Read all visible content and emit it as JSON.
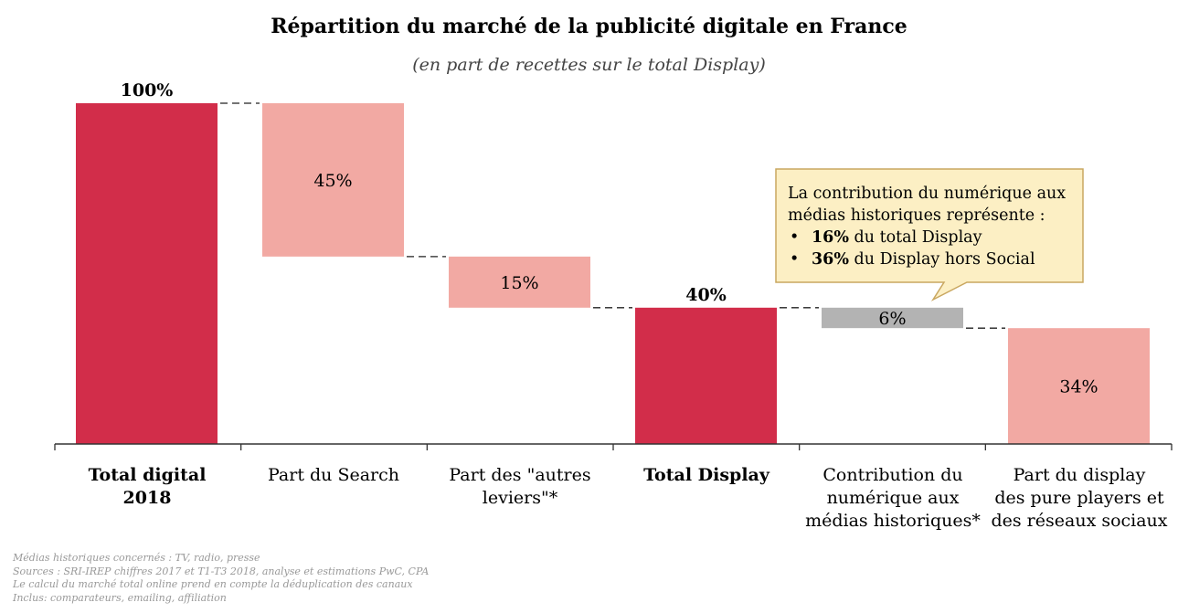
{
  "title": "Répartition du marché de la publicité digitale en France",
  "subtitle": "(en part de recettes sur le total Display)",
  "colors": {
    "total": "#d22d4a",
    "pink": "#f2a9a3",
    "gray": "#b3b3b3",
    "callout_bg": "#fcefc4",
    "callout_border": "#c9a760"
  },
  "chart_data": {
    "type": "bar",
    "subtype": "waterfall",
    "title": "Répartition du marché de la publicité digitale en France",
    "subtitle": "(en part de recettes sur le total Display)",
    "ylim": [
      0,
      100
    ],
    "categories": [
      "Total digital 2018",
      "Part du Search",
      "Part des \"autres leviers\"*",
      "Total Display",
      "Contribution du numérique aux médias historiques*",
      "Part du display des pure players et des réseaux sociaux"
    ],
    "bars": [
      {
        "label": "Total digital 2018",
        "base": 0,
        "value": 100,
        "data_label": "100%",
        "kind": "total"
      },
      {
        "label": "Part du Search",
        "base": 55,
        "value": 45,
        "data_label": "45%",
        "kind": "step"
      },
      {
        "label": "Part des \"autres leviers\"*",
        "base": 40,
        "value": 15,
        "data_label": "15%",
        "kind": "step"
      },
      {
        "label": "Total Display",
        "base": 0,
        "value": 40,
        "data_label": "40%",
        "kind": "total"
      },
      {
        "label": "Contribution du numérique aux médias historiques*",
        "base": 34,
        "value": 6,
        "data_label": "6%",
        "kind": "gray"
      },
      {
        "label": "Part du display des pure players et des réseaux sociaux",
        "base": 0,
        "value": 34,
        "data_label": "34%",
        "kind": "step"
      }
    ],
    "grid": false,
    "legend": "none"
  },
  "axis_labels": {
    "c0": [
      "Total digital",
      "2018"
    ],
    "c1": [
      "Part du Search"
    ],
    "c2": [
      "Part des \"autres",
      "leviers\"*"
    ],
    "c3": [
      "Total Display"
    ],
    "c4": [
      "Contribution du",
      "numérique aux",
      "médias historiques*"
    ],
    "c5": [
      "Part du display",
      "des pure players et",
      "des réseaux sociaux"
    ]
  },
  "callout": {
    "intro": "La contribution du numérique aux médias historiques représente :",
    "bullet1_bold": "16%",
    "bullet1_rest": " du total Display",
    "bullet2_bold": "36%",
    "bullet2_rest": " du Display hors Social"
  },
  "footnotes": [
    "Médias historiques concernés : TV, radio, presse",
    "Sources : SRI-IREP chiffres 2017 et T1-T3 2018, analyse et estimations PwC, CPA",
    "Le calcul du marché total online prend en compte la déduplication des canaux",
    "Inclus: comparateurs, emailing, affiliation"
  ]
}
